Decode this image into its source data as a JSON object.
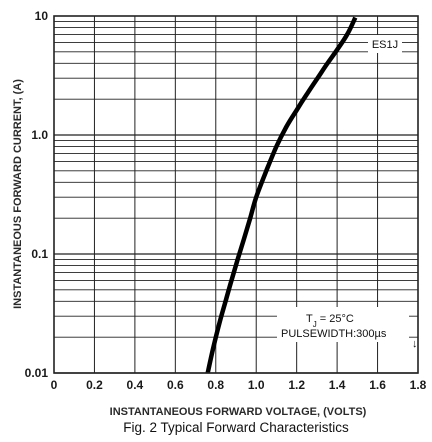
{
  "chart_data": {
    "type": "line",
    "title": "",
    "caption": "Fig. 2 Typical Forward Characteristics",
    "xlabel": "INSTANTANEOUS FORWARD VOLTAGE, (VOLTS)",
    "ylabel": "INSTANTANEOUS  FORWARD CURRENT, (A)",
    "xlim": [
      0,
      1.8
    ],
    "ylim": [
      0.01,
      10
    ],
    "yscale": "log",
    "grid": true,
    "x_ticks": [
      0,
      0.2,
      0.4,
      0.6,
      0.8,
      1.0,
      1.2,
      1.4,
      1.6,
      1.8
    ],
    "x_tick_labels": [
      "0",
      "0.2",
      "0.4",
      "0.6",
      "0.8",
      "1.0",
      "1.2",
      "1.4",
      "1.6",
      "1.8"
    ],
    "y_ticks": [
      0.01,
      0.1,
      1.0,
      10
    ],
    "y_tick_labels": [
      "0.01",
      "0.1",
      "1.0",
      "10"
    ],
    "series": [
      {
        "name": "ES1J",
        "x": [
          0.76,
          0.79,
          0.82,
          0.85,
          0.88,
          0.91,
          0.94,
          0.97,
          1.0,
          1.05,
          1.1,
          1.15,
          1.2,
          1.25,
          1.3,
          1.35,
          1.4,
          1.45,
          1.49
        ],
        "y": [
          0.01,
          0.017,
          0.027,
          0.041,
          0.062,
          0.092,
          0.135,
          0.2,
          0.3,
          0.5,
          0.8,
          1.18,
          1.62,
          2.2,
          2.95,
          3.95,
          5.2,
          7.0,
          9.7
        ]
      }
    ],
    "annotations": {
      "legend_label": "ES1J",
      "tj_symbol": "T",
      "tj_subscript": "J",
      "tj_rest": " = 25°C",
      "pulse": "PULSEWIDTH:300µs",
      "marker": "↓"
    }
  },
  "colors": {
    "grid": "#222222",
    "curve": "#000000",
    "frame": "#222222"
  }
}
